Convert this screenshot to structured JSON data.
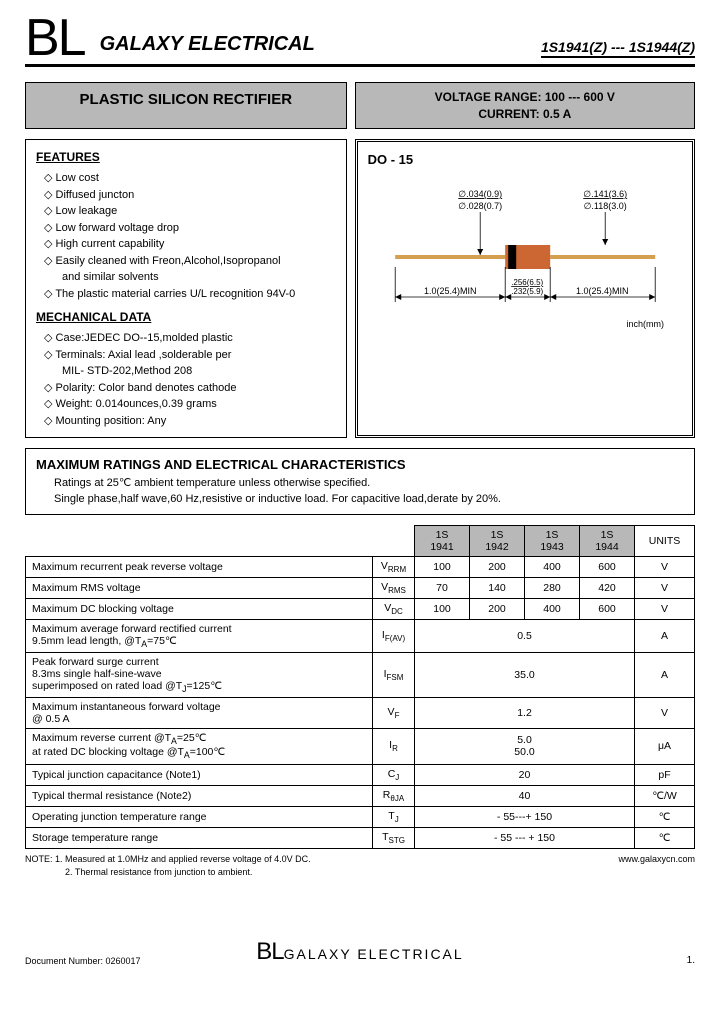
{
  "header": {
    "logo": "BL",
    "company": "GALAXY ELECTRICAL",
    "partno": "1S1941(Z) --- 1S1944(Z)"
  },
  "title": "PLASTIC SILICON RECTIFIER",
  "specbox": {
    "line1": "VOLTAGE RANGE:  100 --- 600 V",
    "line2": "CURRENT:   0.5 A"
  },
  "features": {
    "heading": "FEATURES",
    "items": [
      "Low cost",
      "Diffused juncton",
      "Low leakage",
      "Low forward voltage drop",
      "High current capability",
      "Easily cleaned with Freon,Alcohol,Isopropanol",
      "and similar solvents",
      "The plastic material carries U/L recognition 94V-0"
    ]
  },
  "mechanical": {
    "heading": "MECHANICAL DATA",
    "items": [
      "Case:JEDEC DO--15,molded plastic",
      "Terminals: Axial lead ,solderable per",
      "MIL- STD-202,Method 208",
      "Polarity: Color band denotes cathode",
      "Weight: 0.014ounces,0.39 grams",
      "Mounting position: Any"
    ]
  },
  "diagram": {
    "package": "DO - 15",
    "dim_lead_max": "∅.034(0.9)",
    "dim_lead_min": "∅.028(0.7)",
    "dim_body_max": "∅.141(3.6)",
    "dim_body_min": "∅.118(3.0)",
    "dim_len_left": "1.0(25.4)MIN",
    "dim_body_len_max": ".256(6.5)",
    "dim_body_len_min": ".232(5.9)",
    "dim_len_right": "1.0(25.4)MIN",
    "unit": "inch(mm)",
    "colors": {
      "lead": "#d4a050",
      "body": "#cc6633",
      "band": "#000000"
    }
  },
  "maxratings": {
    "heading": "MAXIMUM RATINGS AND ELECTRICAL CHARACTERISTICS",
    "note1": "Ratings at 25℃ ambient temperature unless otherwise specified.",
    "note2": "Single phase,half wave,60 Hz,resistive or inductive load. For capacitive load,derate by 20%."
  },
  "table": {
    "cols": [
      "1S\n1941",
      "1S\n1942",
      "1S\n1943",
      "1S\n1944"
    ],
    "units_hdr": "UNITS",
    "rows": [
      {
        "param": "Maximum recurrent peak reverse voltage",
        "sym": "V",
        "sub": "RRM",
        "vals": [
          "100",
          "200",
          "400",
          "600"
        ],
        "unit": "V"
      },
      {
        "param": "Maximum RMS voltage",
        "sym": "V",
        "sub": "RMS",
        "vals": [
          "70",
          "140",
          "280",
          "420"
        ],
        "unit": "V"
      },
      {
        "param": "Maximum DC blocking voltage",
        "sym": "V",
        "sub": "DC",
        "vals": [
          "100",
          "200",
          "400",
          "600"
        ],
        "unit": "V"
      },
      {
        "param": "Maximum average forward rectified current\n  9.5mm lead length,       @T<sub>A</sub>=75℃",
        "sym": "I",
        "sub": "F(AV)",
        "merged": "0.5",
        "unit": "A"
      },
      {
        "param": "Peak forward surge current\n  8.3ms single half-sine-wave\n  superimposed on rated load   @T<sub>J</sub>=125℃",
        "sym": "I",
        "sub": "FSM",
        "merged": "35.0",
        "unit": "A"
      },
      {
        "param": "Maximum instantaneous forward voltage\n                   @ 0.5  A",
        "sym": "V",
        "sub": "F",
        "merged": "1.2",
        "unit": "V"
      },
      {
        "param": "Maximum reverse current        @T<sub>A</sub>=25℃\n  at rated DC blocking  voltage   @T<sub>A</sub>=100℃",
        "sym": "I",
        "sub": "R",
        "merged": "5.0\n50.0",
        "unit": "μA"
      },
      {
        "param": "Typical junction capacitance       (Note1)",
        "sym": "C",
        "sub": "J",
        "merged": "20",
        "unit": "pF"
      },
      {
        "param": "Typical thermal resistance       (Note2)",
        "sym": "R",
        "sub": "θJA",
        "merged": "40",
        "unit": "℃/W"
      },
      {
        "param": "Operating junction temperature range",
        "sym": "T",
        "sub": "J",
        "merged": "- 55---+ 150",
        "unit": "℃"
      },
      {
        "param": "Storage temperature range",
        "sym": "T",
        "sub": "STG",
        "merged": "- 55 --- + 150",
        "unit": "℃"
      }
    ]
  },
  "notes": {
    "line1": "NOTE:   1. Measured at 1.0MHz and applied reverse voltage of 4.0V DC.",
    "line2": "2. Thermal resistance from junction to ambient.",
    "url": "www.galaxycn.com"
  },
  "footer": {
    "doc": "Document Number: 0260017",
    "logo_bl": "BL",
    "logo_galaxy": "GALAXY ELECTRICAL",
    "page": "1."
  }
}
